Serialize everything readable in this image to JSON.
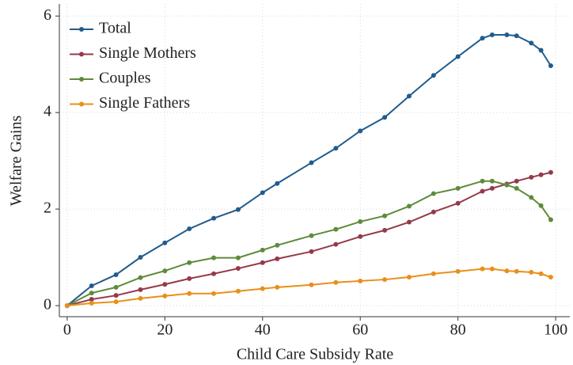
{
  "chart_data": {
    "type": "line",
    "x_label": "Child Care Subsidy Rate",
    "y_label": "Welfare Gains",
    "x": [
      0,
      5,
      10,
      15,
      20,
      25,
      30,
      35,
      40,
      43,
      50,
      55,
      60,
      65,
      70,
      75,
      80,
      85,
      87,
      90,
      92,
      95,
      97,
      99
    ],
    "series": [
      {
        "name": "Total",
        "color": "#215c8c",
        "values": [
          0,
          0.41,
          0.64,
          1.0,
          1.3,
          1.59,
          1.81,
          1.99,
          2.34,
          2.53,
          2.96,
          3.26,
          3.62,
          3.9,
          4.34,
          4.77,
          5.16,
          5.54,
          5.61,
          5.61,
          5.59,
          5.44,
          5.29,
          4.97
        ]
      },
      {
        "name": "Single Mothers",
        "color": "#943a4a",
        "values": [
          0,
          0.13,
          0.21,
          0.33,
          0.44,
          0.56,
          0.66,
          0.77,
          0.89,
          0.97,
          1.12,
          1.27,
          1.43,
          1.56,
          1.73,
          1.94,
          2.12,
          2.37,
          2.43,
          2.52,
          2.58,
          2.66,
          2.71,
          2.76
        ]
      },
      {
        "name": "Couples",
        "color": "#5e8b3a",
        "values": [
          0,
          0.26,
          0.38,
          0.58,
          0.72,
          0.89,
          0.99,
          0.99,
          1.15,
          1.25,
          1.45,
          1.58,
          1.74,
          1.86,
          2.06,
          2.32,
          2.43,
          2.58,
          2.58,
          2.5,
          2.43,
          2.24,
          2.07,
          1.78
        ]
      },
      {
        "name": "Single Fathers",
        "color": "#e8901a",
        "values": [
          0,
          0.05,
          0.08,
          0.15,
          0.2,
          0.25,
          0.25,
          0.3,
          0.35,
          0.38,
          0.43,
          0.48,
          0.51,
          0.54,
          0.59,
          0.66,
          0.71,
          0.76,
          0.76,
          0.72,
          0.71,
          0.69,
          0.66,
          0.59
        ]
      }
    ],
    "xlim": [
      -1.6,
      102.9
    ],
    "xticks": [
      0,
      20,
      40,
      60,
      80,
      100
    ],
    "ylim": [
      -0.23,
      6.25
    ],
    "yticks": [
      0,
      2,
      4,
      6
    ],
    "grid": true,
    "legend": "top-left"
  }
}
